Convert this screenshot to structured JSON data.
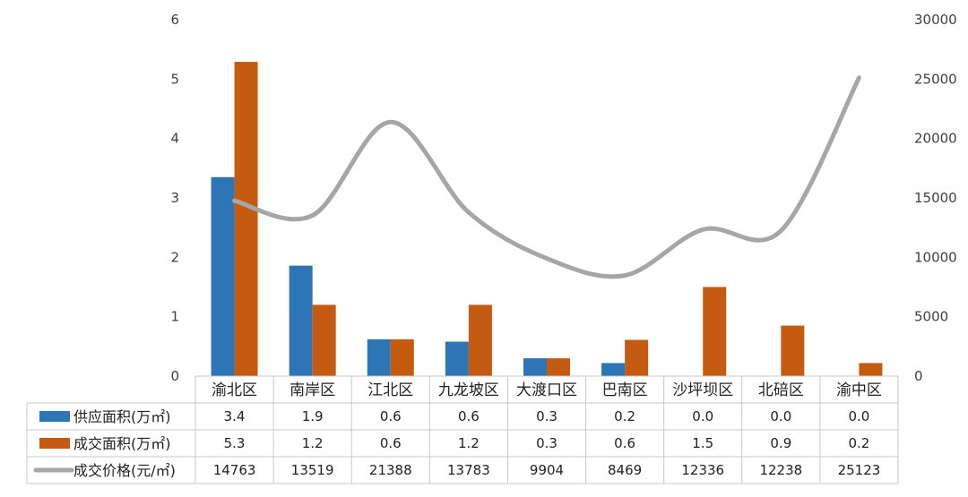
{
  "chart_data": {
    "type": "bar",
    "categories": [
      "渝北区",
      "南岸区",
      "江北区",
      "九龙坡区",
      "大渡口区",
      "巴南区",
      "沙坪坝区",
      "北碚区",
      "渝中区"
    ],
    "y_left": {
      "min": 0,
      "max": 6,
      "ticks": [
        "0",
        "1",
        "2",
        "3",
        "4",
        "5",
        "6"
      ]
    },
    "y_right": {
      "min": 0,
      "max": 30000,
      "ticks": [
        "0",
        "5000",
        "10000",
        "15000",
        "20000",
        "25000",
        "30000"
      ]
    },
    "series": [
      {
        "name": "供应面积(万㎡)",
        "type": "bar",
        "axis": "left",
        "color": "#2E75B6",
        "values": [
          3.35,
          1.86,
          0.62,
          0.58,
          0.3,
          0.22,
          0.0,
          0.0,
          0.0
        ],
        "labels": [
          "3.4",
          "1.9",
          "0.6",
          "0.6",
          "0.3",
          "0.2",
          "0.0",
          "0.0",
          "0.0"
        ]
      },
      {
        "name": "成交面积(万㎡)",
        "type": "bar",
        "axis": "left",
        "color": "#C55A11",
        "values": [
          5.29,
          1.2,
          0.62,
          1.2,
          0.3,
          0.61,
          1.5,
          0.85,
          0.22
        ],
        "labels": [
          "5.3",
          "1.2",
          "0.6",
          "1.2",
          "0.3",
          "0.6",
          "1.5",
          "0.9",
          "0.2"
        ]
      },
      {
        "name": "成交价格(元/㎡)",
        "type": "line",
        "axis": "right",
        "color": "#A6A6A6",
        "values": [
          14763,
          13519,
          21388,
          13783,
          9904,
          8469,
          12336,
          12238,
          25123
        ],
        "labels": [
          "14763",
          "13519",
          "21388",
          "13783",
          "9904",
          "8469",
          "12336",
          "12238",
          "25123"
        ]
      }
    ],
    "grid": false,
    "legend": "data-table"
  }
}
